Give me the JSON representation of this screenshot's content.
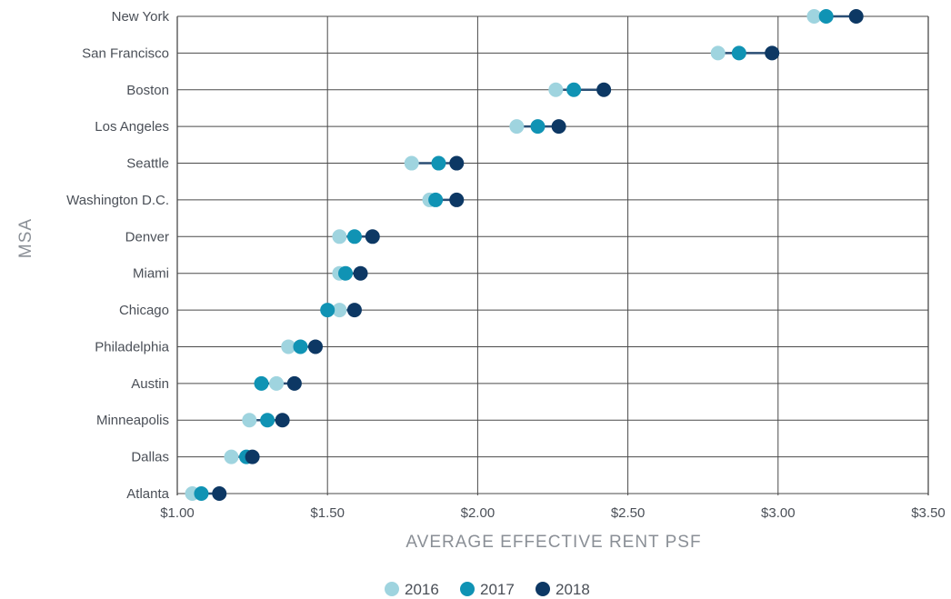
{
  "chart_data": {
    "type": "scatter",
    "orientation": "horizontal-dot-plot",
    "title": "",
    "xlabel": "AVERAGE EFFECTIVE RENT PSF",
    "ylabel": "MSA",
    "xlim": [
      1.0,
      3.5
    ],
    "x_ticks": [
      1.0,
      1.5,
      2.0,
      2.5,
      3.0,
      3.5
    ],
    "x_tick_labels": [
      "$1.00",
      "$1.50",
      "$2.00",
      "$2.50",
      "$3.00",
      "$3.50"
    ],
    "grid": true,
    "legend_position": "bottom-center",
    "categories": [
      "New York",
      "San Francisco",
      "Boston",
      "Los Angeles",
      "Seattle",
      "Washington D.C.",
      "Denver",
      "Miami",
      "Chicago",
      "Philadelphia",
      "Austin",
      "Minneapolis",
      "Dallas",
      "Atlanta"
    ],
    "series": [
      {
        "name": "2016",
        "color": "#9fd4df",
        "values": [
          3.12,
          2.8,
          2.26,
          2.13,
          1.78,
          1.84,
          1.54,
          1.54,
          1.54,
          1.37,
          1.33,
          1.24,
          1.18,
          1.05
        ]
      },
      {
        "name": "2017",
        "color": "#1093b4",
        "values": [
          3.16,
          2.87,
          2.32,
          2.2,
          1.87,
          1.86,
          1.59,
          1.56,
          1.5,
          1.41,
          1.28,
          1.3,
          1.23,
          1.08
        ]
      },
      {
        "name": "2018",
        "color": "#0d3864",
        "values": [
          3.26,
          2.98,
          2.42,
          2.27,
          1.93,
          1.93,
          1.65,
          1.61,
          1.59,
          1.46,
          1.39,
          1.35,
          1.25,
          1.14
        ]
      }
    ]
  }
}
